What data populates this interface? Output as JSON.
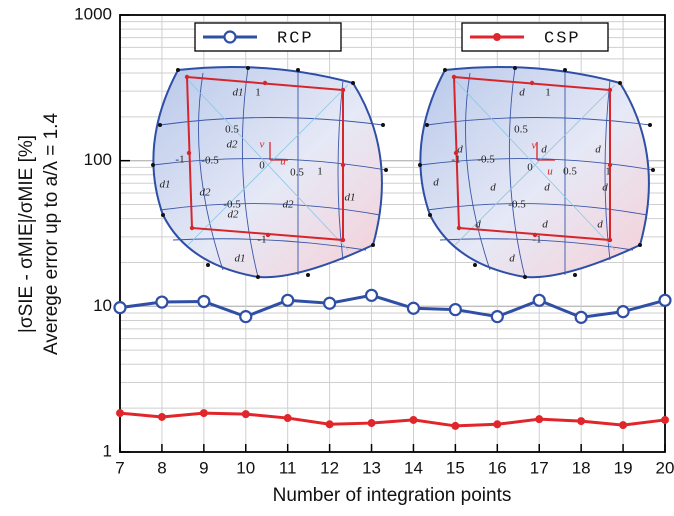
{
  "chart_data": {
    "type": "line",
    "xlabel": "Number of integration points",
    "ylabel": [
      "|σSIE - σMIE|/σMIE [%]",
      "Averege error up to a/λ = 1.4"
    ],
    "x": [
      7,
      8,
      9,
      10,
      11,
      12,
      13,
      14,
      15,
      16,
      17,
      18,
      19,
      20
    ],
    "series": [
      {
        "name": "RCP",
        "color": "#2f4fa6",
        "marker": "open-circle",
        "values": [
          9.8,
          10.7,
          10.8,
          8.5,
          11,
          10.5,
          11.9,
          9.7,
          9.5,
          8.5,
          11,
          8.4,
          9.2,
          11
        ]
      },
      {
        "name": "CSP",
        "color": "#e0262b",
        "marker": "filled-circle",
        "values": [
          1.85,
          1.74,
          1.85,
          1.82,
          1.71,
          1.55,
          1.58,
          1.66,
          1.51,
          1.55,
          1.68,
          1.63,
          1.53,
          1.66
        ]
      }
    ],
    "xlim": [
      7,
      20
    ],
    "xticks": [
      7,
      8,
      9,
      10,
      11,
      12,
      13,
      14,
      15,
      16,
      17,
      18,
      19,
      20
    ],
    "ylim": [
      1,
      1000
    ],
    "yticks": [
      1,
      10,
      100,
      1000
    ],
    "ylog": true,
    "grid": true,
    "insets": [
      {
        "labels": [
          "d1",
          "1",
          "0.5",
          "d2",
          "v",
          "u",
          "0.5",
          "-1",
          "-0.5",
          "0",
          "1",
          "d1",
          "d2",
          "-0.5",
          "d2",
          "d1",
          "d2",
          "-1",
          "d1"
        ]
      },
      {
        "labels": [
          "d",
          "1",
          "0.5",
          "d",
          "d",
          "d",
          "v",
          "-1",
          "-0.5",
          "0",
          "u",
          "0.5",
          "1",
          "d",
          "d",
          "d",
          "d",
          "-0.5",
          "d",
          "d",
          "d",
          "-1",
          "d"
        ]
      }
    ]
  }
}
